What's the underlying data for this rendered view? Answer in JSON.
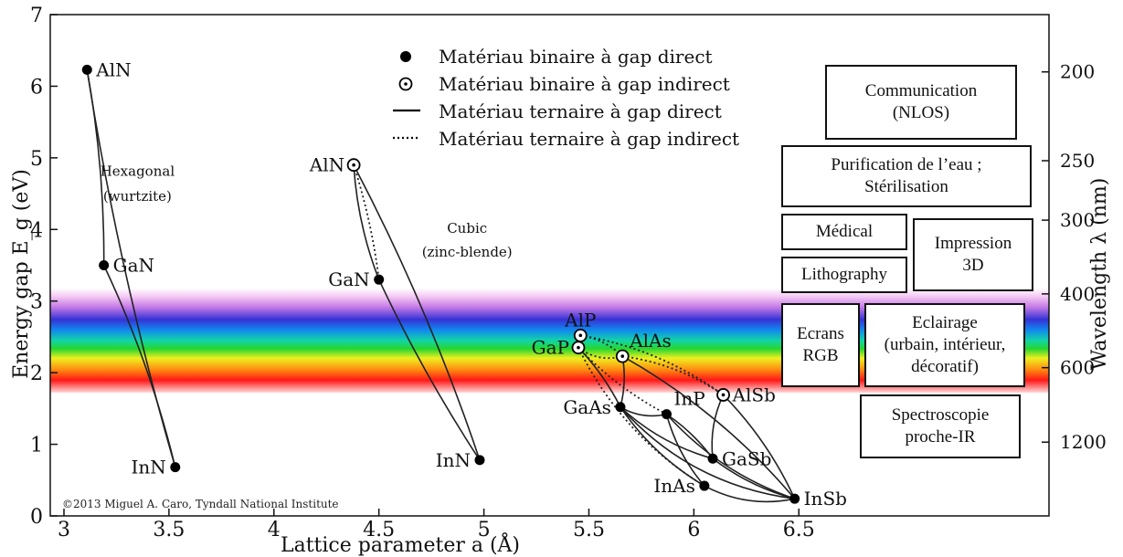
{
  "chart_data": {
    "type": "scatter",
    "xlabel": "Lattice parameter a (Å)",
    "ylabel": "Energy gap E_g (eV)",
    "y2label": "Wavelength λ (nm)",
    "xlim": [
      2.95,
      7.7
    ],
    "ylim": [
      0,
      7
    ],
    "x_ticks": [
      "3",
      "3.5",
      "4",
      "4.5",
      "5",
      "5.5",
      "6",
      "6.5"
    ],
    "y_ticks": [
      "0",
      "1",
      "2",
      "3",
      "4",
      "5",
      "6",
      "7"
    ],
    "wavelength_ticks": [
      {
        "label": "200",
        "eV": 6.2
      },
      {
        "label": "250",
        "eV": 4.96
      },
      {
        "label": "300",
        "eV": 4.13
      },
      {
        "label": "400",
        "eV": 3.1
      },
      {
        "label": "600",
        "eV": 2.07
      },
      {
        "label": "1200",
        "eV": 1.03
      }
    ],
    "visible_spectrum_band": [
      1.72,
      3.18
    ],
    "grid": false,
    "structure_labels": [
      {
        "text": "Hexagonal",
        "x": 3.35,
        "y": 4.75
      },
      {
        "text": "(wurtzite)",
        "x": 3.35,
        "y": 4.4
      },
      {
        "text": "Cubic",
        "x": 4.92,
        "y": 3.95
      },
      {
        "text": "(zinc-blende)",
        "x": 4.92,
        "y": 3.62
      }
    ],
    "points": [
      {
        "label": "AlN",
        "x": 3.11,
        "y": 6.23,
        "type": "direct",
        "anchor": "right"
      },
      {
        "label": "GaN",
        "x": 3.19,
        "y": 3.5,
        "type": "direct",
        "anchor": "right"
      },
      {
        "label": "InN",
        "x": 3.53,
        "y": 0.68,
        "type": "direct",
        "anchor": "left"
      },
      {
        "label": "AlN",
        "x": 4.38,
        "y": 4.9,
        "type": "indirect",
        "anchor": "left"
      },
      {
        "label": "GaN",
        "x": 4.5,
        "y": 3.3,
        "type": "direct",
        "anchor": "left"
      },
      {
        "label": "InN",
        "x": 4.98,
        "y": 0.78,
        "type": "direct",
        "anchor": "left"
      },
      {
        "label": "AlP",
        "x": 5.46,
        "y": 2.52,
        "type": "indirect",
        "anchor": "above"
      },
      {
        "label": "GaP",
        "x": 5.45,
        "y": 2.35,
        "type": "indirect",
        "anchor": "left"
      },
      {
        "label": "AlAs",
        "x": 5.66,
        "y": 2.23,
        "type": "indirect",
        "anchor": "above-right"
      },
      {
        "label": "AlSb",
        "x": 6.14,
        "y": 1.69,
        "type": "indirect",
        "anchor": "right"
      },
      {
        "label": "GaAs",
        "x": 5.65,
        "y": 1.52,
        "type": "direct",
        "anchor": "left"
      },
      {
        "label": "InP",
        "x": 5.87,
        "y": 1.42,
        "type": "direct",
        "anchor": "above-right"
      },
      {
        "label": "GaSb",
        "x": 6.09,
        "y": 0.8,
        "type": "direct",
        "anchor": "right"
      },
      {
        "label": "InAs",
        "x": 6.05,
        "y": 0.42,
        "type": "direct",
        "anchor": "left"
      },
      {
        "label": "InSb",
        "x": 6.48,
        "y": 0.24,
        "type": "direct",
        "anchor": "right"
      }
    ],
    "legend": [
      {
        "type": "dot",
        "label": "Matériau binaire à gap direct"
      },
      {
        "type": "circle-dot",
        "label": "Matériau binaire à gap indirect"
      },
      {
        "type": "solid",
        "label": "Matériau ternaire à gap direct"
      },
      {
        "type": "dotted",
        "label": "Matériau ternaire à gap indirect"
      }
    ],
    "copyright": "©2013 Miguel A. Caro, Tyndall National Institute"
  },
  "applications": [
    {
      "id": "communication",
      "text": "Communication\n(NLOS)"
    },
    {
      "id": "purification",
      "text": "Purification de l’eau ;\nStérilisation"
    },
    {
      "id": "medical",
      "text": "Médical"
    },
    {
      "id": "impression",
      "text": "Impression\n3D"
    },
    {
      "id": "lithography",
      "text": "Lithography"
    },
    {
      "id": "ecrans",
      "text": "Ecrans\nRGB"
    },
    {
      "id": "eclairage",
      "text": "Eclairage\n(urbain, intérieur,\ndécoratif)"
    },
    {
      "id": "spectroscopie",
      "text": "Spectroscopie\nproche-IR"
    }
  ]
}
